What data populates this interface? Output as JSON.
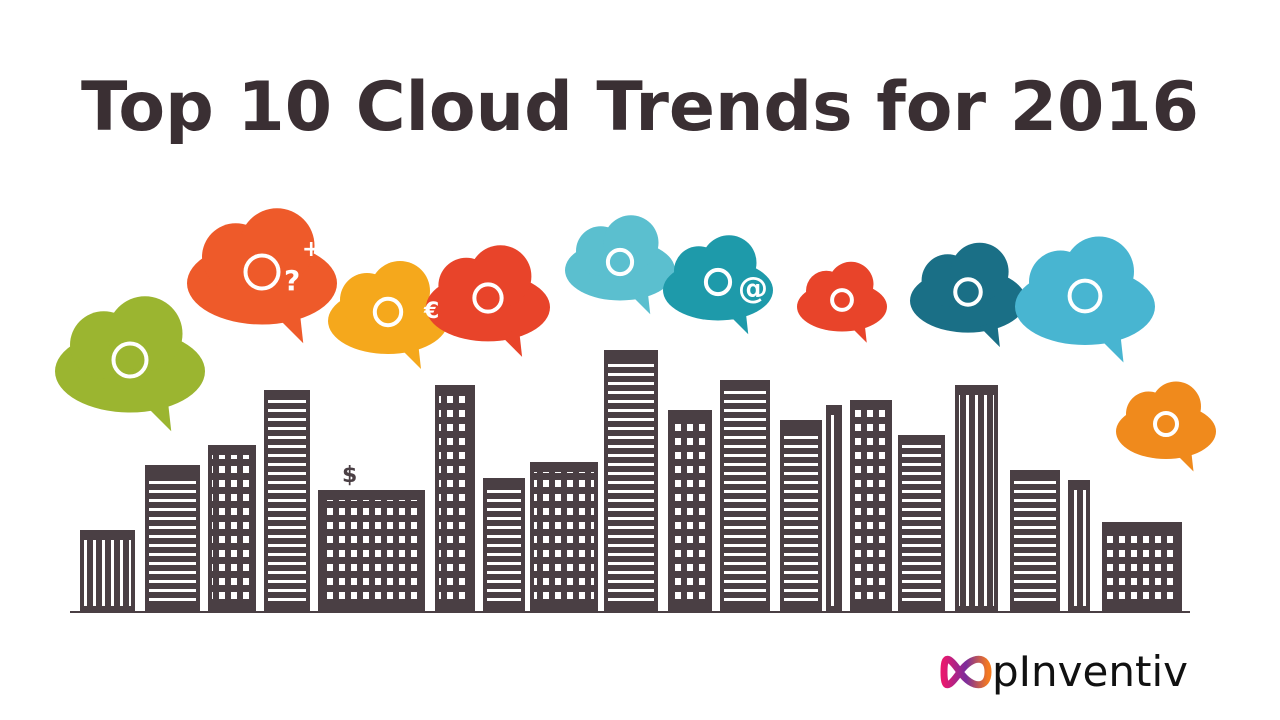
{
  "header": {
    "title": "Top 10 Cloud Trends for 2016"
  },
  "illustration": {
    "symbols": {
      "dollar": "$",
      "euro": "€",
      "at": "@",
      "question": "?",
      "plus": "+"
    }
  },
  "footer": {
    "brand": "pInventiv"
  }
}
